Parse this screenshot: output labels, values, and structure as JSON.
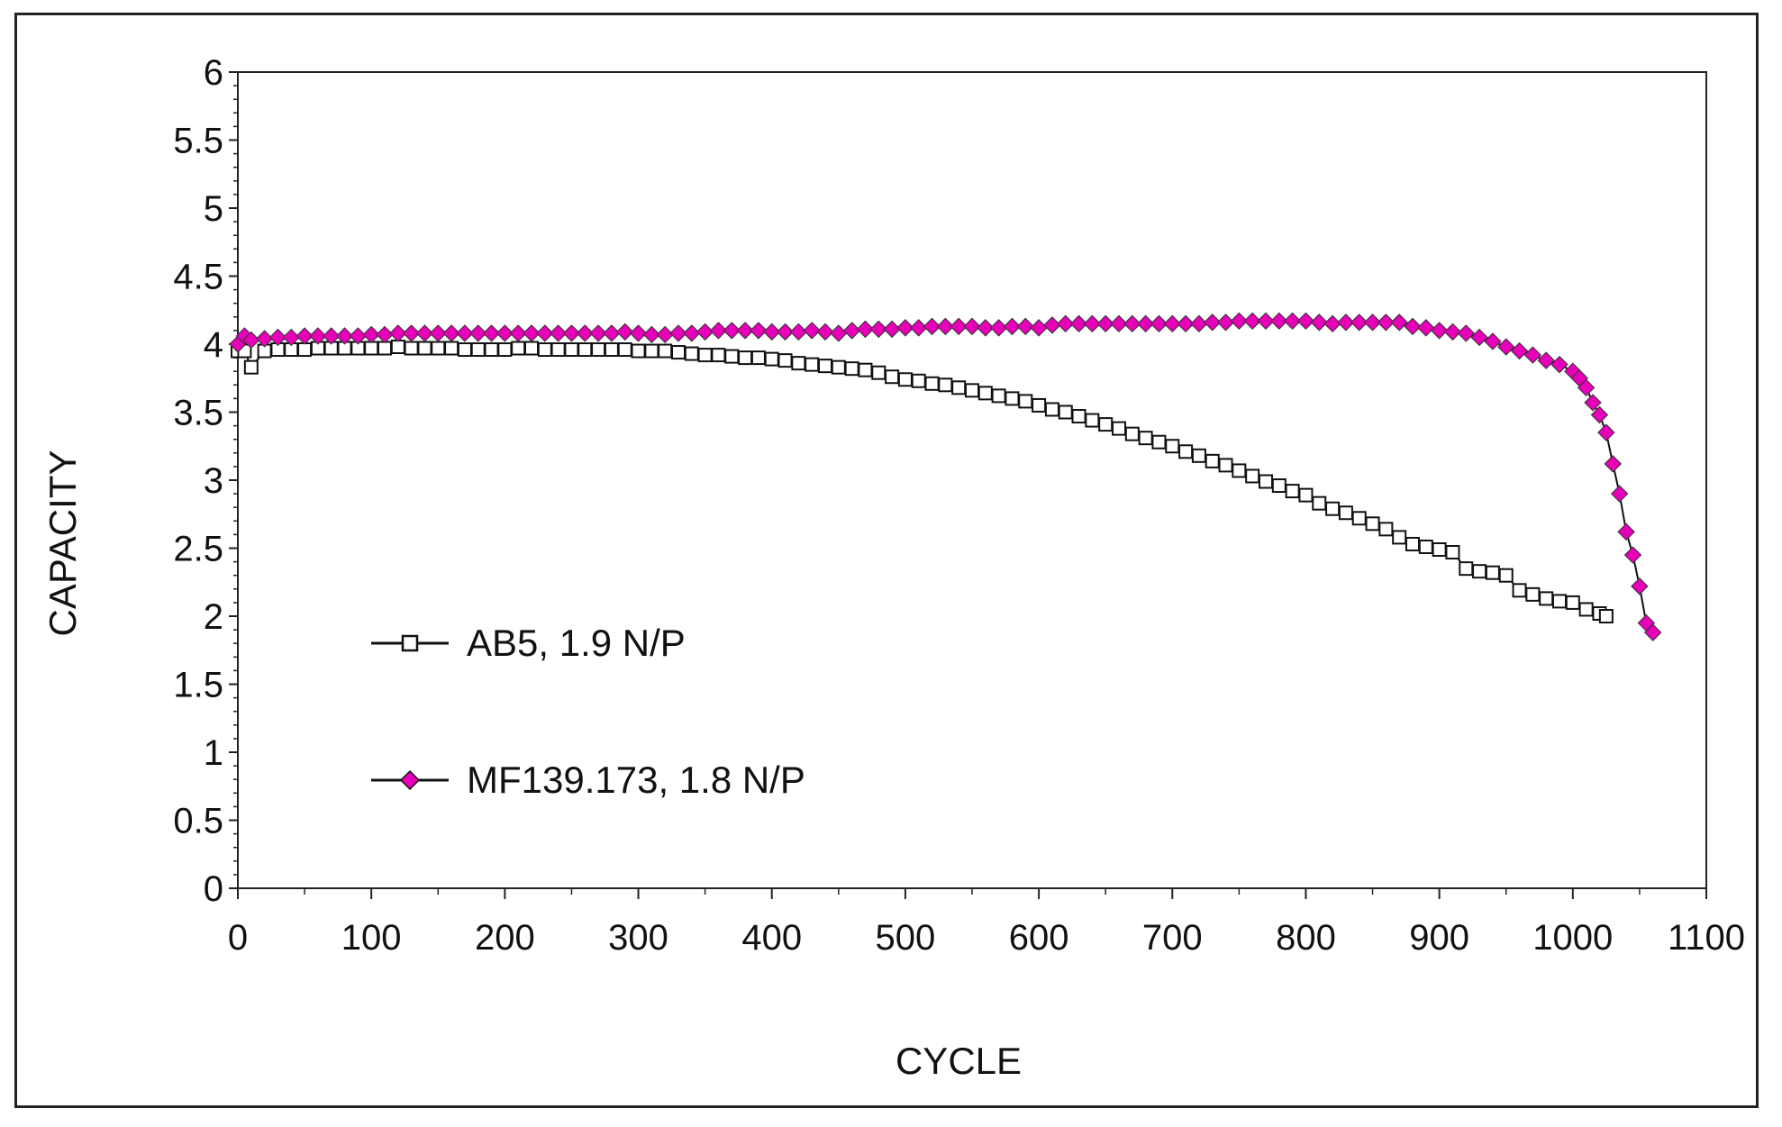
{
  "chart_data": {
    "type": "scatter",
    "title": "",
    "xlabel": "CYCLE",
    "ylabel": "CAPACITY",
    "xlim": [
      0,
      1100
    ],
    "ylim": [
      0,
      6
    ],
    "x_ticks": [
      "0",
      "100",
      "200",
      "300",
      "400",
      "500",
      "600",
      "700",
      "800",
      "900",
      "1000",
      "1100"
    ],
    "y_ticks": [
      "0",
      "0.5",
      "1",
      "1.5",
      "2",
      "2.5",
      "3",
      "3.5",
      "4",
      "4.5",
      "5",
      "5.5",
      "6"
    ],
    "grid": false,
    "legend_position": "middle-left",
    "series": [
      {
        "name": "AB5, 1.9 N/P",
        "marker": "open-square",
        "color": "#111111",
        "x": [
          0,
          5,
          10,
          20,
          30,
          40,
          50,
          60,
          70,
          80,
          90,
          100,
          110,
          120,
          130,
          140,
          150,
          160,
          170,
          180,
          190,
          200,
          210,
          220,
          230,
          240,
          250,
          260,
          270,
          280,
          290,
          300,
          310,
          320,
          330,
          340,
          350,
          360,
          370,
          380,
          390,
          400,
          410,
          420,
          430,
          440,
          450,
          460,
          470,
          480,
          490,
          500,
          510,
          520,
          530,
          540,
          550,
          560,
          570,
          580,
          590,
          600,
          610,
          620,
          630,
          640,
          650,
          660,
          670,
          680,
          690,
          700,
          710,
          720,
          730,
          740,
          750,
          760,
          770,
          780,
          790,
          800,
          810,
          820,
          830,
          840,
          850,
          860,
          870,
          880,
          890,
          900,
          910,
          920,
          930,
          940,
          950,
          960,
          970,
          980,
          990,
          1000,
          1010,
          1020,
          1025
        ],
        "y": [
          3.95,
          3.95,
          3.83,
          3.95,
          3.96,
          3.96,
          3.96,
          3.97,
          3.97,
          3.97,
          3.97,
          3.97,
          3.97,
          3.98,
          3.97,
          3.97,
          3.97,
          3.97,
          3.96,
          3.96,
          3.96,
          3.96,
          3.97,
          3.97,
          3.96,
          3.96,
          3.96,
          3.96,
          3.96,
          3.96,
          3.96,
          3.95,
          3.95,
          3.95,
          3.94,
          3.93,
          3.92,
          3.92,
          3.91,
          3.9,
          3.9,
          3.89,
          3.88,
          3.86,
          3.85,
          3.84,
          3.83,
          3.82,
          3.81,
          3.79,
          3.76,
          3.74,
          3.73,
          3.71,
          3.7,
          3.68,
          3.66,
          3.64,
          3.62,
          3.6,
          3.58,
          3.55,
          3.52,
          3.5,
          3.47,
          3.44,
          3.41,
          3.38,
          3.34,
          3.31,
          3.28,
          3.25,
          3.21,
          3.18,
          3.14,
          3.11,
          3.07,
          3.03,
          2.99,
          2.96,
          2.92,
          2.89,
          2.83,
          2.79,
          2.76,
          2.72,
          2.68,
          2.64,
          2.58,
          2.53,
          2.51,
          2.49,
          2.47,
          2.35,
          2.33,
          2.32,
          2.3,
          2.19,
          2.16,
          2.13,
          2.11,
          2.1,
          2.05,
          2.02,
          2.0
        ]
      },
      {
        "name": "MF139.173, 1.8 N/P",
        "marker": "filled-diamond",
        "color": "#e600b8",
        "x": [
          0,
          5,
          10,
          20,
          30,
          40,
          50,
          60,
          70,
          80,
          90,
          100,
          110,
          120,
          130,
          140,
          150,
          160,
          170,
          180,
          190,
          200,
          210,
          220,
          230,
          240,
          250,
          260,
          270,
          280,
          290,
          300,
          310,
          320,
          330,
          340,
          350,
          360,
          370,
          380,
          390,
          400,
          410,
          420,
          430,
          440,
          450,
          460,
          470,
          480,
          490,
          500,
          510,
          520,
          530,
          540,
          550,
          560,
          570,
          580,
          590,
          600,
          610,
          620,
          630,
          640,
          650,
          660,
          670,
          680,
          690,
          700,
          710,
          720,
          730,
          740,
          750,
          760,
          770,
          780,
          790,
          800,
          810,
          820,
          830,
          840,
          850,
          860,
          870,
          880,
          890,
          900,
          910,
          920,
          930,
          940,
          950,
          960,
          970,
          980,
          990,
          1000,
          1005,
          1010,
          1015,
          1020,
          1025,
          1030,
          1035,
          1040,
          1045,
          1050,
          1055,
          1060
        ],
        "y": [
          4.0,
          4.06,
          4.03,
          4.04,
          4.05,
          4.05,
          4.06,
          4.06,
          4.06,
          4.06,
          4.06,
          4.07,
          4.07,
          4.08,
          4.08,
          4.08,
          4.08,
          4.08,
          4.08,
          4.08,
          4.08,
          4.08,
          4.08,
          4.08,
          4.08,
          4.08,
          4.08,
          4.08,
          4.08,
          4.08,
          4.09,
          4.08,
          4.07,
          4.07,
          4.08,
          4.08,
          4.09,
          4.1,
          4.1,
          4.1,
          4.1,
          4.09,
          4.09,
          4.09,
          4.1,
          4.09,
          4.08,
          4.1,
          4.11,
          4.11,
          4.11,
          4.12,
          4.12,
          4.13,
          4.13,
          4.13,
          4.13,
          4.12,
          4.12,
          4.13,
          4.13,
          4.12,
          4.14,
          4.15,
          4.15,
          4.15,
          4.15,
          4.15,
          4.15,
          4.15,
          4.15,
          4.15,
          4.15,
          4.15,
          4.16,
          4.16,
          4.17,
          4.17,
          4.17,
          4.17,
          4.17,
          4.17,
          4.16,
          4.15,
          4.16,
          4.16,
          4.16,
          4.16,
          4.16,
          4.13,
          4.12,
          4.1,
          4.09,
          4.08,
          4.05,
          4.02,
          3.98,
          3.95,
          3.92,
          3.88,
          3.85,
          3.8,
          3.75,
          3.68,
          3.57,
          3.48,
          3.35,
          3.12,
          2.9,
          2.62,
          2.45,
          2.22,
          1.95,
          1.88
        ]
      }
    ]
  }
}
